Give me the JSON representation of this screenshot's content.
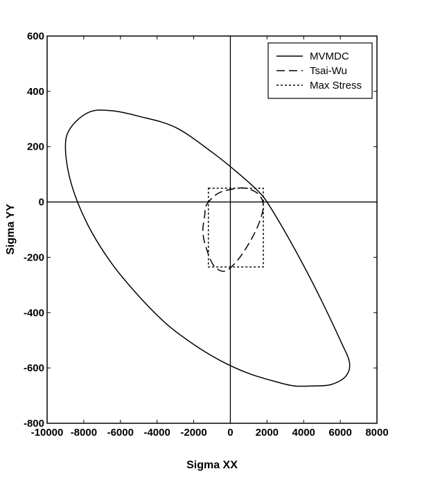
{
  "chart_data": {
    "type": "line",
    "title": "",
    "xlabel": "Sigma XX",
    "ylabel": "Sigma YY",
    "xlim": [
      -10000,
      8000
    ],
    "ylim": [
      -800,
      600
    ],
    "x_ticks": [
      -10000,
      -8000,
      -6000,
      -4000,
      -2000,
      0,
      2000,
      4000,
      6000,
      8000
    ],
    "y_ticks": [
      -800,
      -600,
      -400,
      -200,
      0,
      200,
      400,
      600
    ],
    "x_tick_labels": [
      "-10000",
      "-8000",
      "-6000",
      "-4000",
      "-2000",
      "0",
      "2000",
      "4000",
      "6000",
      "8000"
    ],
    "y_tick_labels": [
      "-800",
      "-600",
      "-400",
      "-200",
      "0",
      "200",
      "400",
      "600"
    ],
    "grid": false,
    "zero_lines": true,
    "legend_position": "top-right",
    "series": [
      {
        "name": "MVMDC",
        "line_style": "solid",
        "closed": true,
        "x": [
          -9000,
          -8700,
          -7700,
          -6500,
          -5000,
          -3000,
          -1000,
          500,
          1500,
          2000,
          3000,
          4000,
          5000,
          6000,
          6500,
          6300,
          5500,
          4500,
          3500,
          2500,
          1000,
          -500,
          -2000,
          -3500,
          -5000,
          -6500,
          -7800,
          -8700,
          -9000
        ],
        "y": [
          200,
          270,
          325,
          330,
          310,
          270,
          180,
          100,
          40,
          0,
          -110,
          -230,
          -360,
          -500,
          -580,
          -630,
          -660,
          -665,
          -665,
          -650,
          -620,
          -575,
          -515,
          -440,
          -340,
          -220,
          -80,
          70,
          200
        ]
      },
      {
        "name": "Tsai-Wu",
        "line_style": "dashed",
        "closed": true,
        "x": [
          -1300,
          -700,
          0,
          800,
          1500,
          1800,
          1600,
          1100,
          400,
          -300,
          -900,
          -1300,
          -1500,
          -1400,
          -1300
        ],
        "y": [
          -10,
          30,
          45,
          50,
          30,
          -10,
          -70,
          -140,
          -210,
          -250,
          -230,
          -170,
          -110,
          -50,
          -10
        ]
      },
      {
        "name": "Max Stress",
        "line_style": "dotted",
        "closed": true,
        "x": [
          -1200,
          1800,
          1800,
          -1200,
          -1200
        ],
        "y": [
          50,
          50,
          -235,
          -235,
          50
        ]
      }
    ]
  }
}
